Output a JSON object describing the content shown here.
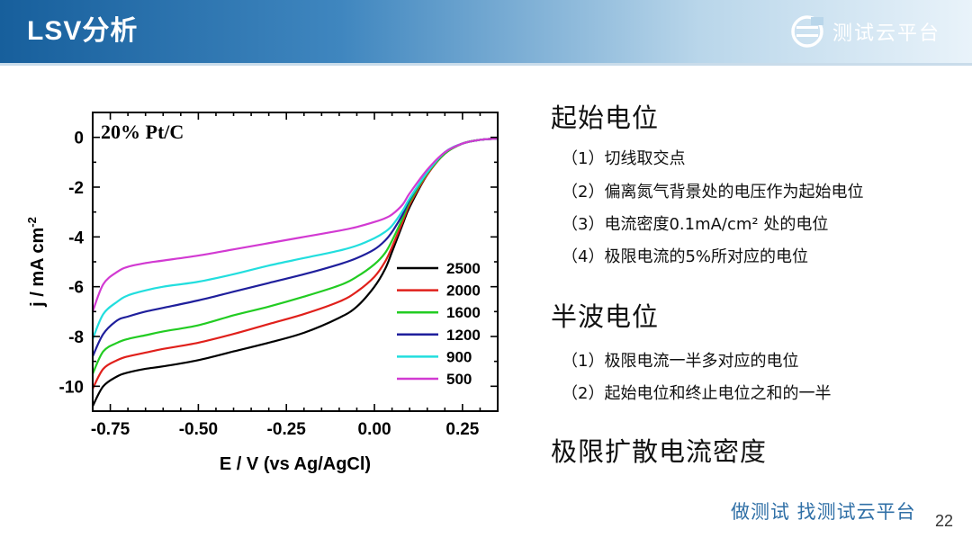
{
  "slide": {
    "title": "LSV分析",
    "brand": {
      "name": "测试云平台",
      "logo_icon": "brand-logo-icon"
    },
    "footer_slogan": "做测试  找测试云平台",
    "page_number": "22"
  },
  "sections": [
    {
      "title": "起始电位",
      "items": [
        "（1）切线取交点",
        "（2）偏离氮气背景处的电压作为起始电位",
        "（3）电流密度0.1mA/cm² 处的电位",
        "（4）极限电流的5%所对应的电位"
      ]
    },
    {
      "title": "半波电位",
      "items": [
        "（1）极限电流一半多对应的电位",
        "（2）起始电位和终止电位之和的一半"
      ]
    },
    {
      "title": "极限扩散电流密度",
      "items": []
    }
  ],
  "chart_data": {
    "type": "line",
    "annotation": "20% Pt/C",
    "xlabel": "E / V (vs Ag/AgCl)",
    "ylabel": "j / mA cm",
    "ylabel_sup": "-2",
    "xlim": [
      -0.8,
      0.35
    ],
    "ylim": [
      -11,
      1
    ],
    "xticks": [
      -0.75,
      -0.5,
      -0.25,
      0.0,
      0.25
    ],
    "xtick_labels": [
      "-0.75",
      "-0.50",
      "-0.25",
      "0.00",
      "0.25"
    ],
    "yticks": [
      0,
      -2,
      -4,
      -6,
      -8,
      -10
    ],
    "ytick_labels": [
      "0",
      "-2",
      "-4",
      "-6",
      "-8",
      "-10"
    ],
    "grid": false,
    "legend_position": "center-right",
    "x": [
      -0.8,
      -0.77,
      -0.73,
      -0.7,
      -0.65,
      -0.6,
      -0.5,
      -0.4,
      -0.3,
      -0.2,
      -0.1,
      -0.05,
      0.0,
      0.03,
      0.05,
      0.08,
      0.1,
      0.15,
      0.2,
      0.25,
      0.3,
      0.35
    ],
    "series": [
      {
        "name": "2500",
        "color": "#000000",
        "values": [
          -10.8,
          -10.0,
          -9.6,
          -9.45,
          -9.3,
          -9.2,
          -8.95,
          -8.6,
          -8.25,
          -7.85,
          -7.25,
          -6.8,
          -6.0,
          -5.3,
          -4.6,
          -3.5,
          -2.8,
          -1.5,
          -0.65,
          -0.25,
          -0.1,
          -0.05
        ]
      },
      {
        "name": "2000",
        "color": "#e0201b",
        "values": [
          -10.1,
          -9.3,
          -8.95,
          -8.8,
          -8.65,
          -8.5,
          -8.25,
          -7.9,
          -7.5,
          -7.1,
          -6.6,
          -6.2,
          -5.6,
          -5.0,
          -4.4,
          -3.4,
          -2.7,
          -1.5,
          -0.65,
          -0.25,
          -0.1,
          -0.05
        ]
      },
      {
        "name": "1600",
        "color": "#22cc22",
        "values": [
          -9.5,
          -8.6,
          -8.25,
          -8.1,
          -7.95,
          -7.8,
          -7.55,
          -7.15,
          -6.8,
          -6.4,
          -5.95,
          -5.6,
          -5.1,
          -4.65,
          -4.15,
          -3.25,
          -2.6,
          -1.45,
          -0.65,
          -0.25,
          -0.1,
          -0.05
        ]
      },
      {
        "name": "1200",
        "color": "#1f1f9c",
        "values": [
          -8.8,
          -7.9,
          -7.35,
          -7.2,
          -7.0,
          -6.85,
          -6.55,
          -6.2,
          -5.85,
          -5.5,
          -5.1,
          -4.85,
          -4.5,
          -4.15,
          -3.8,
          -3.1,
          -2.5,
          -1.4,
          -0.6,
          -0.25,
          -0.1,
          -0.05
        ]
      },
      {
        "name": "900",
        "color": "#22dede",
        "values": [
          -8.1,
          -7.1,
          -6.6,
          -6.35,
          -6.15,
          -6.0,
          -5.8,
          -5.5,
          -5.15,
          -4.85,
          -4.55,
          -4.35,
          -4.05,
          -3.8,
          -3.55,
          -2.95,
          -2.45,
          -1.4,
          -0.6,
          -0.25,
          -0.1,
          -0.05
        ]
      },
      {
        "name": "500",
        "color": "#d23ad2",
        "values": [
          -7.0,
          -5.9,
          -5.4,
          -5.2,
          -5.05,
          -4.95,
          -4.75,
          -4.5,
          -4.25,
          -4.0,
          -3.75,
          -3.6,
          -3.4,
          -3.25,
          -3.1,
          -2.7,
          -2.25,
          -1.3,
          -0.6,
          -0.25,
          -0.1,
          -0.05
        ]
      }
    ]
  }
}
